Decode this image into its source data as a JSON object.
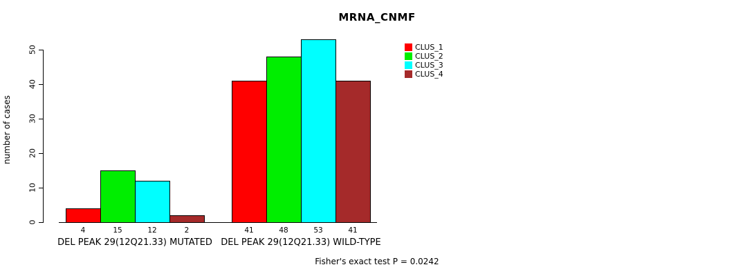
{
  "chart_data": {
    "type": "bar",
    "title": "MRNA_CNMF",
    "ylabel": "number of cases",
    "annotation": "Fisher's exact test P = 0.0242",
    "yticks": [
      0,
      10,
      20,
      30,
      40,
      50
    ],
    "ylim": [
      0,
      53
    ],
    "grid": false,
    "legend_position": "top-right",
    "series": [
      {
        "name": "CLUS_1",
        "color": "#ff0000"
      },
      {
        "name": "CLUS_2",
        "color": "#00ee00"
      },
      {
        "name": "CLUS_3",
        "color": "#00ffff"
      },
      {
        "name": "CLUS_4",
        "color": "#a52a2a"
      }
    ],
    "groups": [
      {
        "label": "DEL PEAK 29(12Q21.33) MUTATED",
        "values": [
          4,
          15,
          12,
          2
        ]
      },
      {
        "label": "DEL PEAK 29(12Q21.33) WILD-TYPE",
        "values": [
          41,
          48,
          53,
          41
        ]
      }
    ]
  }
}
